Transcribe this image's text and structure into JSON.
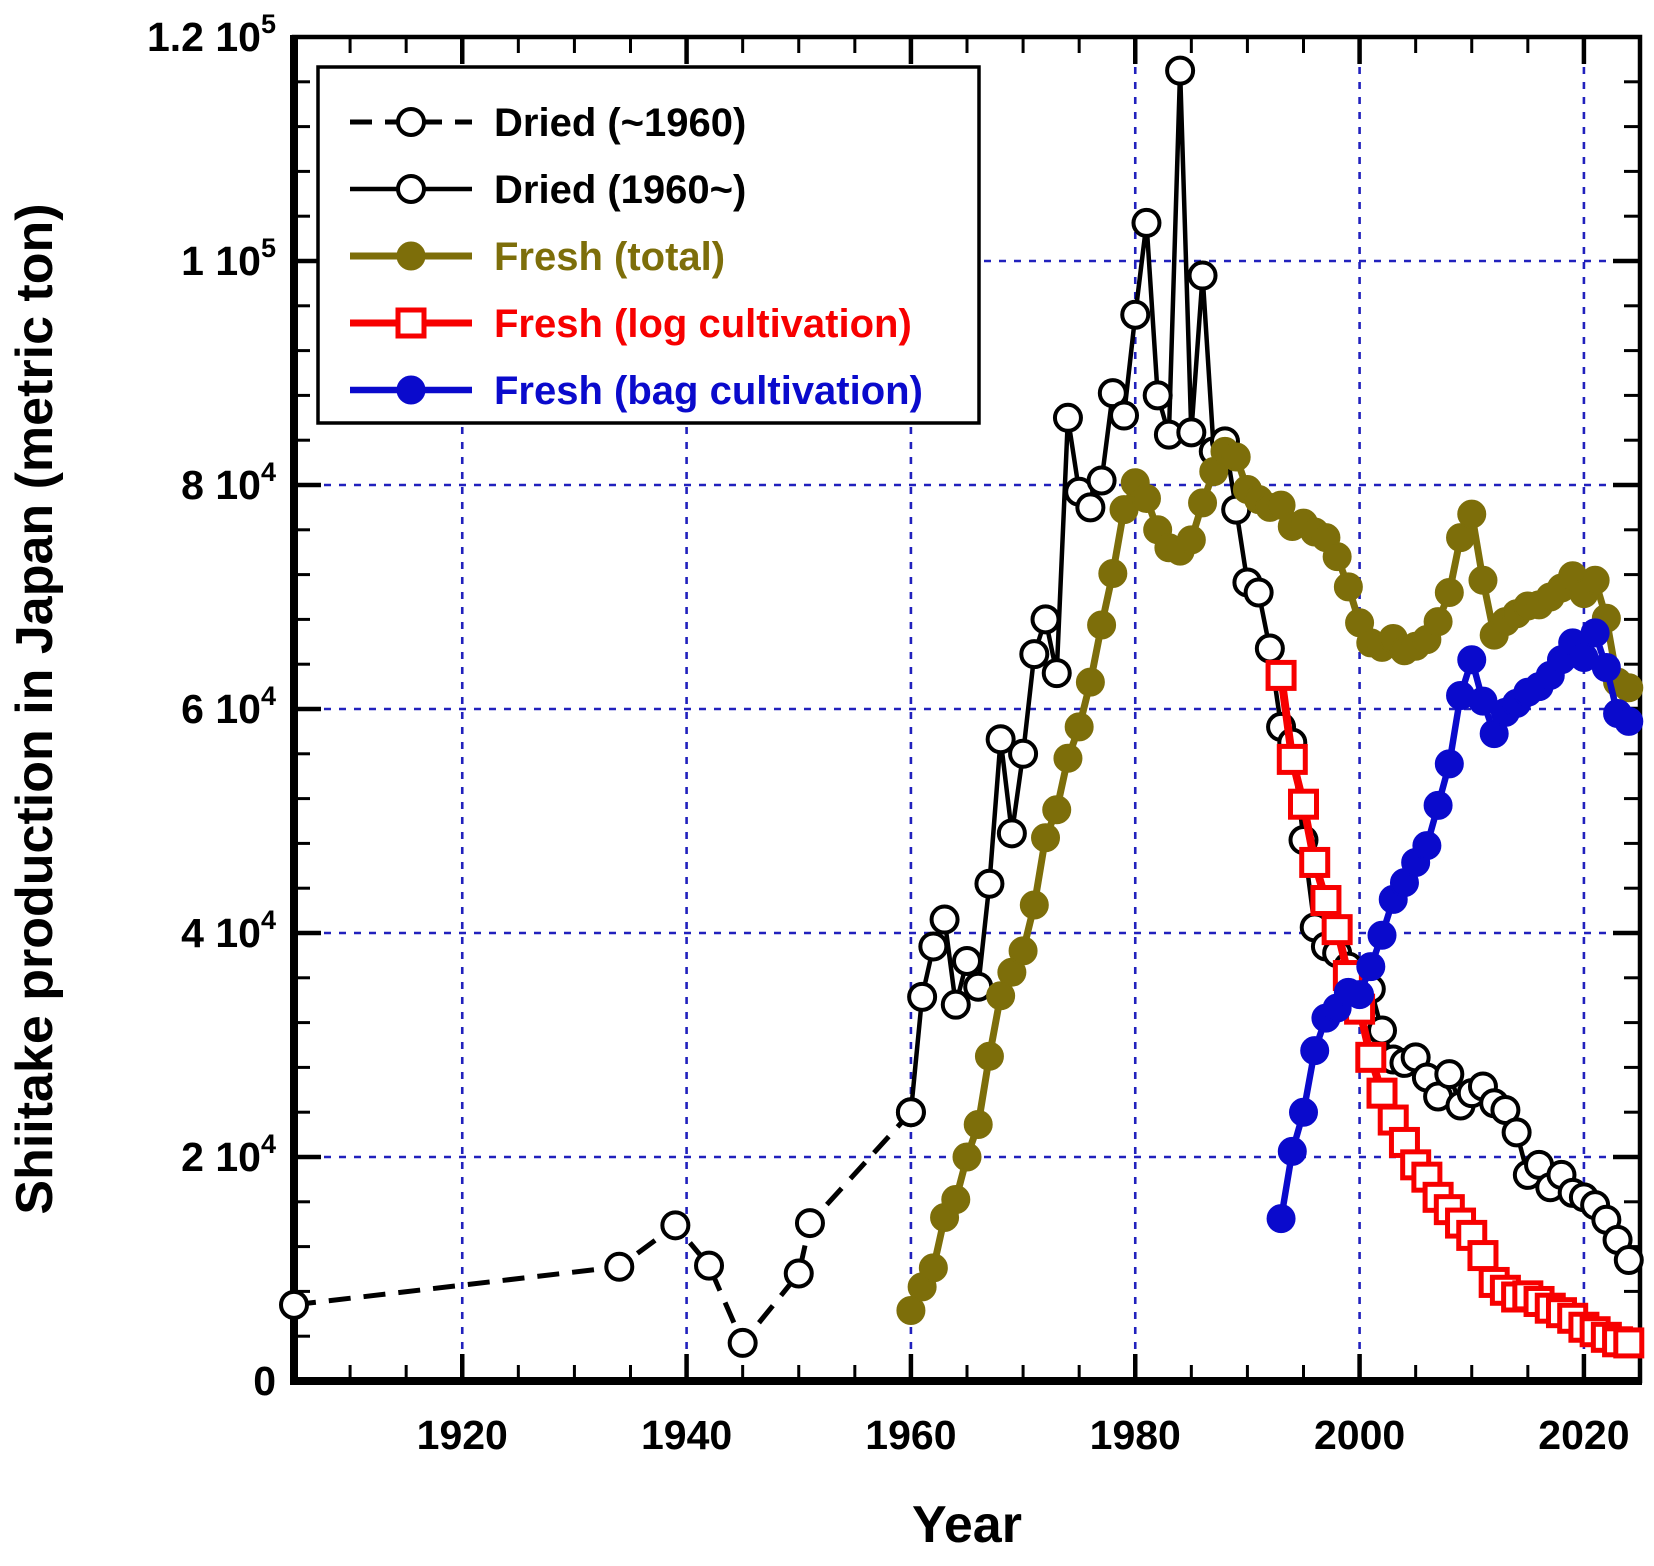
{
  "chart_data": {
    "type": "line",
    "title": "",
    "xlabel": "Year",
    "ylabel": "Shiitake production in Japan (metric ton)",
    "xlim": [
      1905,
      2025
    ],
    "ylim": [
      0,
      120000
    ],
    "grid": "on",
    "grid_color": "#2121bd",
    "axis_color": "#000000",
    "background_color": "#ffffff",
    "legend_position": "upper-left",
    "x_ticks": [
      {
        "v": 1920,
        "label": "1920"
      },
      {
        "v": 1940,
        "label": "1940"
      },
      {
        "v": 1960,
        "label": "1960"
      },
      {
        "v": 1980,
        "label": "1980"
      },
      {
        "v": 2000,
        "label": "2000"
      },
      {
        "v": 2020,
        "label": "2020"
      }
    ],
    "x_minor_step": 5,
    "y_ticks": [
      {
        "v": 0,
        "m": "0",
        "e": ""
      },
      {
        "v": 20000,
        "m": "2 10",
        "e": "4"
      },
      {
        "v": 40000,
        "m": "4 10",
        "e": "4"
      },
      {
        "v": 60000,
        "m": "6 10",
        "e": "4"
      },
      {
        "v": 80000,
        "m": "8 10",
        "e": "4"
      },
      {
        "v": 100000,
        "m": "1 10",
        "e": "5"
      },
      {
        "v": 120000,
        "m": "1.2 10",
        "e": "5"
      }
    ],
    "y_minor_step": 4000,
    "series": [
      {
        "name": "Dried (~1960)",
        "color": "#000000",
        "line": "dashed",
        "line_width": 5,
        "marker": "open-circle",
        "x": [
          1905,
          1934,
          1939,
          1942,
          1945,
          1950,
          1951,
          1960
        ],
        "y": [
          6800,
          10200,
          13900,
          10300,
          3400,
          9600,
          14100,
          24000
        ]
      },
      {
        "name": "Dried (1960~)",
        "color": "#000000",
        "line": "solid",
        "line_width": 4.5,
        "marker": "open-circle",
        "x_start": 1960,
        "y": [
          24000,
          34300,
          38800,
          41200,
          33600,
          37500,
          35200,
          44400,
          57300,
          48900,
          56000,
          64900,
          68000,
          63200,
          86000,
          79400,
          78000,
          80400,
          88200,
          86200,
          95200,
          103400,
          88000,
          84500,
          117000,
          84700,
          98700,
          83000,
          83900,
          77800,
          71300,
          70400,
          65400,
          58400,
          57000,
          48300,
          40500,
          38800,
          38200,
          37000,
          36000,
          35000,
          31300,
          28700,
          28400,
          28900,
          27100,
          25400,
          27400,
          24600,
          25700,
          26300,
          24800,
          24200,
          22200,
          18400,
          19300,
          17300,
          18400,
          16800,
          16400,
          15700,
          14400,
          12600,
          10800
        ]
      },
      {
        "name": "Fresh (total)",
        "color": "#7d6e0a",
        "line": "solid",
        "line_width": 7,
        "marker": "filled-circle",
        "x_start": 1960,
        "y": [
          6300,
          8400,
          10100,
          14600,
          16200,
          20000,
          22900,
          29000,
          34400,
          36500,
          38400,
          42500,
          48500,
          51000,
          55600,
          58400,
          62400,
          67500,
          72100,
          77800,
          80200,
          78800,
          76000,
          74400,
          74100,
          75100,
          78400,
          81200,
          83000,
          82500,
          79600,
          78700,
          78000,
          78200,
          76300,
          76600,
          75800,
          75300,
          73600,
          70900,
          67700,
          65900,
          65500,
          66300,
          65200,
          65600,
          66200,
          67800,
          70400,
          75300,
          77400,
          71500,
          66600,
          67800,
          68500,
          69200,
          69300,
          70000,
          70800,
          71900,
          70300,
          71500,
          68100,
          62400,
          61900
        ]
      },
      {
        "name": "Fresh (log cultivation)",
        "color": "#f70000",
        "line": "solid",
        "line_width": 8,
        "marker": "open-square",
        "x_start": 1993,
        "y": [
          63000,
          55500,
          51500,
          46300,
          42900,
          40300,
          36200,
          33200,
          28900,
          25700,
          23300,
          21300,
          19300,
          18200,
          16400,
          15300,
          14100,
          13000,
          11200,
          8800,
          8100,
          7500,
          7600,
          7100,
          6500,
          6100,
          5600,
          4800,
          4400,
          3900,
          3500,
          3400
        ]
      },
      {
        "name": "Fresh (bag cultivation)",
        "color": "#0a0acc",
        "line": "solid",
        "line_width": 6.5,
        "marker": "filled-circle",
        "x_start": 1993,
        "y": [
          14500,
          20500,
          24000,
          29500,
          32400,
          33300,
          34700,
          34500,
          37000,
          39800,
          43000,
          44500,
          46300,
          47800,
          51400,
          55100,
          61200,
          64400,
          60700,
          57800,
          59700,
          60500,
          61500,
          62000,
          63000,
          64400,
          65900,
          64600,
          66800,
          63700,
          59600,
          58900
        ]
      }
    ]
  }
}
